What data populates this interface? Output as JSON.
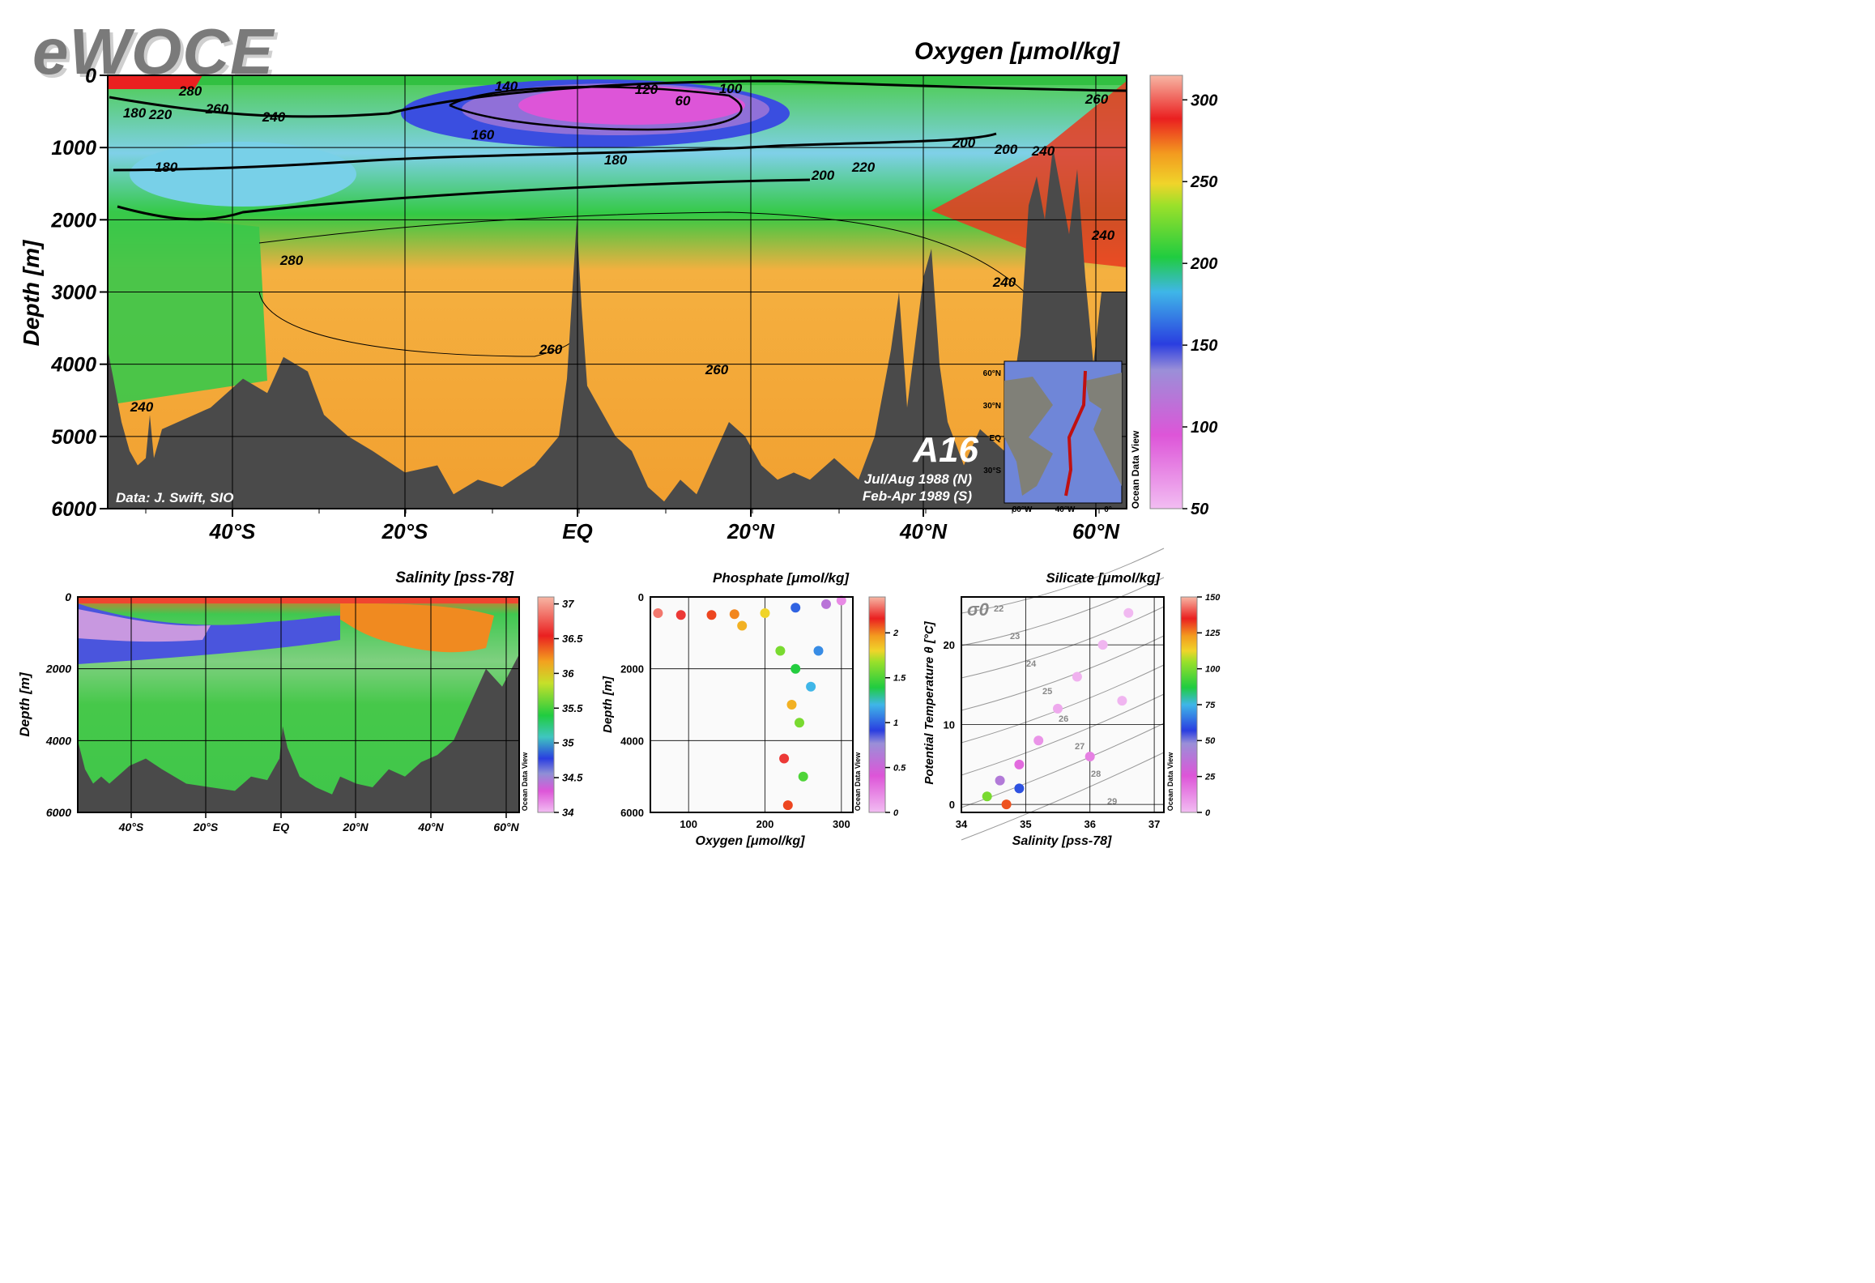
{
  "logo": "eWOCE",
  "chart_data": [
    {
      "type": "heatmap",
      "id": "oxygen",
      "title": "Oxygen [μmol/kg]",
      "ylabel": "Depth [m]",
      "xticks": [
        "40°S",
        "20°S",
        "EQ",
        "20°N",
        "40°N",
        "60°N"
      ],
      "yticks": [
        "0",
        "1000",
        "2000",
        "3000",
        "4000",
        "5000",
        "6000"
      ],
      "ylim": [
        0,
        6000
      ],
      "colorbar": {
        "ticks": [
          "300",
          "250",
          "200",
          "150",
          "100",
          "50"
        ],
        "range": [
          50,
          315
        ]
      },
      "contour_labels": [
        "140",
        "100",
        "120",
        "60",
        "180",
        "220",
        "260",
        "240",
        "280",
        "160",
        "200",
        "180",
        "200",
        "220",
        "240",
        "260",
        "240",
        "280",
        "260",
        "260",
        "240",
        "240",
        "180",
        "200"
      ],
      "credit": "Data: J. Swift, SIO",
      "section_name": "A16",
      "dates": [
        "Jul/Aug 1988 (N)",
        "Feb-Apr 1989 (S)"
      ],
      "inset_map": {
        "lat_labels": [
          "60°N",
          "30°N",
          "EQ",
          "30°S"
        ],
        "lon_labels": [
          "80°W",
          "40°W",
          "0°"
        ]
      },
      "watermark": "Ocean Data View"
    },
    {
      "type": "heatmap",
      "id": "salinity",
      "title": "Salinity [pss-78]",
      "ylabel": "Depth [m]",
      "xticks": [
        "40°S",
        "20°S",
        "EQ",
        "20°N",
        "40°N",
        "60°N"
      ],
      "yticks": [
        "0",
        "2000",
        "4000",
        "6000"
      ],
      "ylim": [
        0,
        6000
      ],
      "colorbar": {
        "ticks": [
          "37",
          "36.5",
          "36",
          "35.5",
          "35",
          "34.5",
          "34"
        ],
        "range": [
          34,
          37.1
        ]
      },
      "watermark": "Ocean Data View"
    },
    {
      "type": "scatter",
      "id": "phosphate",
      "title": "Phosphate [μmol/kg]",
      "xlabel": "Oxygen [μmol/kg]",
      "ylabel": "Depth [m]",
      "xticks": [
        "100",
        "200",
        "300"
      ],
      "yticks": [
        "0",
        "2000",
        "4000",
        "6000"
      ],
      "xlim": [
        50,
        315
      ],
      "ylim": [
        0,
        6000
      ],
      "colorbar": {
        "ticks": [
          "2",
          "1.5",
          "1",
          "0.5",
          "0"
        ],
        "range": [
          0,
          2.4
        ]
      },
      "series": [
        {
          "values": [
            [
              60,
              450,
              2.3
            ],
            [
              90,
              500,
              2.2
            ],
            [
              130,
              500,
              2.1
            ],
            [
              160,
              480,
              2.0
            ],
            [
              200,
              450,
              1.8
            ],
            [
              240,
              300,
              1.0
            ],
            [
              280,
              200,
              0.6
            ],
            [
              300,
              100,
              0.2
            ],
            [
              170,
              800,
              1.9
            ],
            [
              220,
              1500,
              1.6
            ],
            [
              240,
              2000,
              1.4
            ],
            [
              260,
              2500,
              1.2
            ],
            [
              270,
              1500,
              1.1
            ],
            [
              235,
              3000,
              1.9
            ],
            [
              245,
              3500,
              1.6
            ],
            [
              225,
              4500,
              2.2
            ],
            [
              250,
              5000,
              1.5
            ],
            [
              230,
              5800,
              2.1
            ]
          ]
        }
      ],
      "watermark": "Ocean Data View"
    },
    {
      "type": "scatter",
      "id": "silicate",
      "title": "Silicate [μmol/kg]",
      "xlabel": "Salinity [pss-78]",
      "ylabel": "Potential Temperature θ [°C]",
      "xticks": [
        "34",
        "35",
        "36",
        "37"
      ],
      "yticks": [
        "0",
        "10",
        "20"
      ],
      "xlim": [
        34,
        37.15
      ],
      "ylim": [
        -1,
        26
      ],
      "colorbar": {
        "ticks": [
          "150",
          "125",
          "100",
          "75",
          "50",
          "25",
          "0"
        ],
        "range": [
          0,
          150
        ]
      },
      "sigma_label": "σ0",
      "isopycnal_labels": [
        "22",
        "23",
        "24",
        "25",
        "26",
        "27",
        "28",
        "29"
      ],
      "series": [
        {
          "values": [
            [
              34.7,
              0,
              130
            ],
            [
              34.9,
              2,
              60
            ],
            [
              34.6,
              3,
              40
            ],
            [
              34.9,
              5,
              20
            ],
            [
              35.2,
              8,
              10
            ],
            [
              35.5,
              12,
              5
            ],
            [
              35.8,
              16,
              3
            ],
            [
              36.2,
              20,
              2
            ],
            [
              36.6,
              24,
              1
            ],
            [
              36.5,
              13,
              2
            ],
            [
              36.0,
              6,
              15
            ],
            [
              34.4,
              1,
              100
            ]
          ]
        }
      ],
      "watermark": "Ocean Data View"
    }
  ],
  "colors": {
    "land": "#4a4a4a",
    "frame": "#000000"
  }
}
